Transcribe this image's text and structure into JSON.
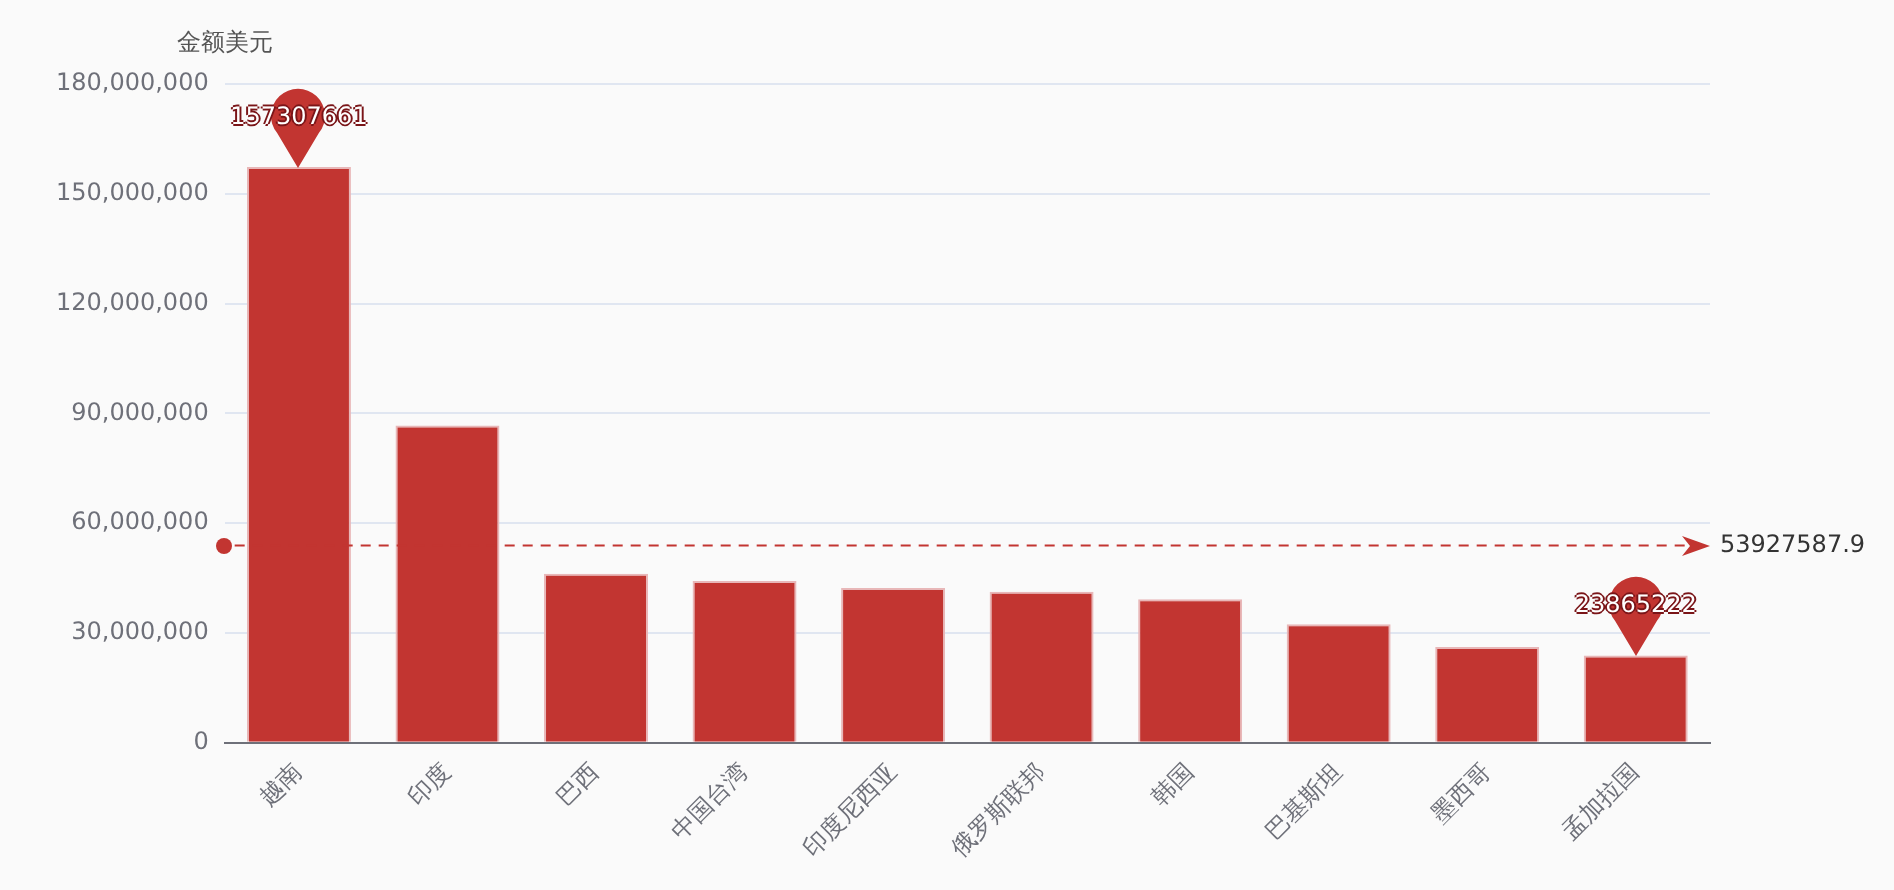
{
  "chart_data": {
    "type": "bar",
    "ylabel": "金额美元",
    "categories": [
      "越南",
      "印度",
      "巴西",
      "中国台湾",
      "印度尼西亚",
      "俄罗斯联邦",
      "韩国",
      "巴基斯坦",
      "墨西哥",
      "孟加拉国"
    ],
    "values": [
      157307661,
      86700000,
      46200000,
      44200000,
      42300000,
      41300000,
      39200000,
      32400000,
      26200000,
      23865222
    ],
    "color": "#c23531",
    "ylim": [
      0,
      180000000
    ],
    "yticks": [
      0,
      {
        "value": 30000000,
        "label": "30,000,000"
      },
      {
        "value": 60000000,
        "label": "60,000,000"
      },
      {
        "value": 90000000,
        "label": "90,000,000"
      },
      {
        "value": 120000000,
        "label": "120,000,000"
      },
      {
        "value": 150000000,
        "label": "150,000,000"
      },
      {
        "value": 180000000,
        "label": "180,000,000"
      }
    ],
    "grid": "y",
    "legend": false,
    "ref_lines": [
      {
        "axis": "y",
        "value": 53927587.9,
        "label": "53927587.9",
        "color": "#c23531",
        "line_style": "dashed"
      }
    ],
    "annotations": [
      {
        "text": "157307661",
        "x": "越南",
        "y": 157307661
      },
      {
        "text": "23865222",
        "x": "孟加拉国",
        "y": 23865222
      }
    ]
  }
}
